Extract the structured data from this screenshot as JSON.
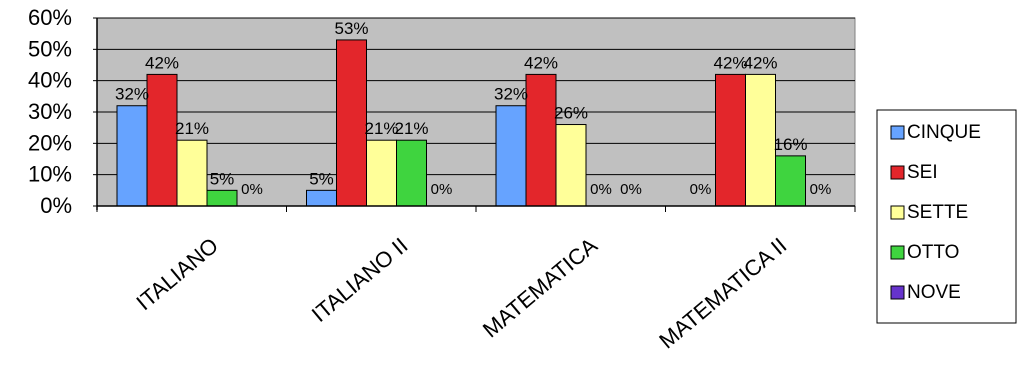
{
  "chart_data": {
    "type": "bar",
    "title": "",
    "xlabel": "",
    "ylabel": "",
    "categories": [
      "ITALIANO",
      "ITALIANO II",
      "MATEMATICA",
      "MATEMATICA II"
    ],
    "ylim": [
      0,
      60
    ],
    "yticks": [
      "0%",
      "10%",
      "20%",
      "30%",
      "40%",
      "50%",
      "60%"
    ],
    "grid": true,
    "legend_position": "right",
    "series": [
      {
        "name": "CINQUE",
        "color": "#66a3ff",
        "values": [
          32,
          5,
          32,
          0
        ],
        "labels": [
          "32%",
          "5%",
          "32%",
          "0%"
        ]
      },
      {
        "name": "SEI",
        "color": "#e3262b",
        "values": [
          42,
          53,
          42,
          42
        ],
        "labels": [
          "42%",
          "53%",
          "42%",
          "42%"
        ]
      },
      {
        "name": "SETTE",
        "color": "#ffff99",
        "values": [
          21,
          21,
          26,
          42
        ],
        "labels": [
          "21%",
          "21%",
          "26%",
          "42%"
        ]
      },
      {
        "name": "OTTO",
        "color": "#3fd43f",
        "values": [
          5,
          21,
          0,
          16
        ],
        "labels": [
          "5%",
          "21%",
          "0%",
          "16%"
        ]
      },
      {
        "name": "NOVE",
        "color": "#6633cc",
        "values": [
          0,
          0,
          0,
          0
        ],
        "labels": [
          "0%",
          "0%",
          "0%",
          "0%"
        ]
      }
    ],
    "plot_background": "#c0c0c0"
  }
}
